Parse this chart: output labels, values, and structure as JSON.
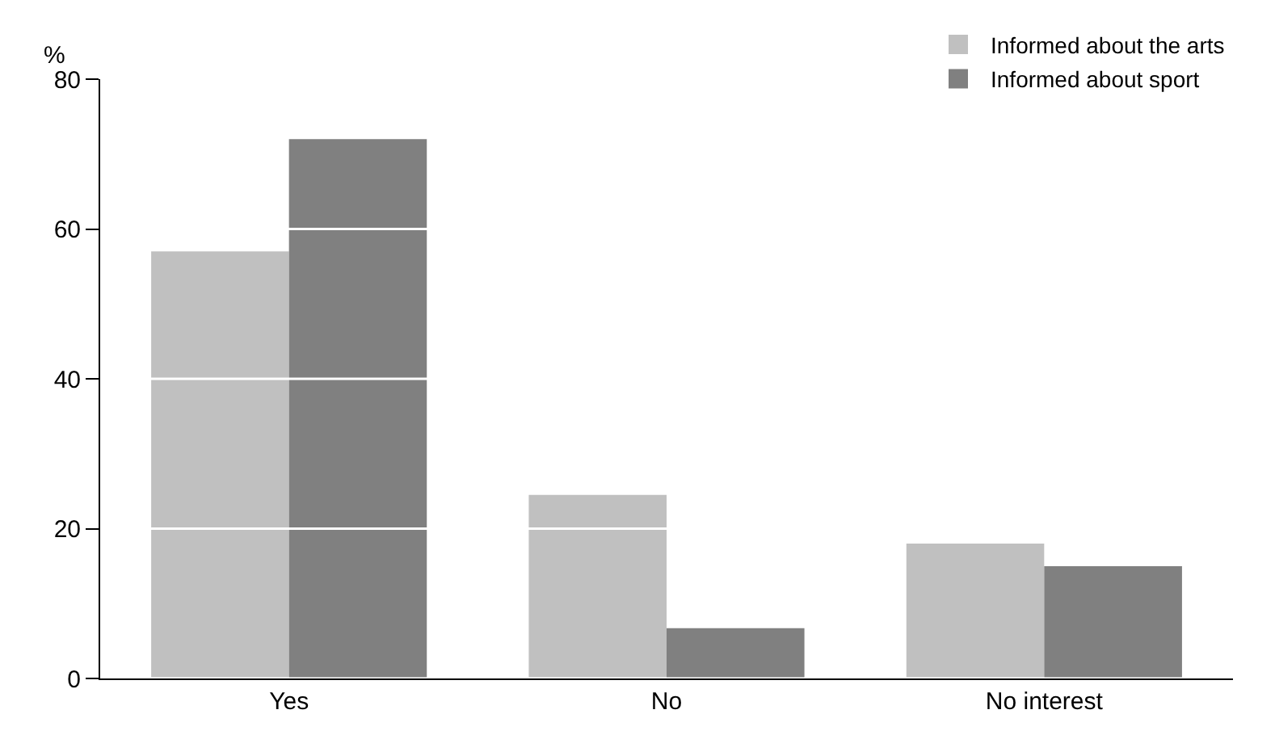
{
  "chart_data": {
    "type": "bar",
    "ylabel": "%",
    "categories": [
      "Yes",
      "No",
      "No interest"
    ],
    "series": [
      {
        "name": "Informed about the arts",
        "color": "#c0c0c0",
        "values": [
          57,
          24.5,
          18
        ]
      },
      {
        "name": "Informed about sport",
        "color": "#808080",
        "values": [
          72,
          6.7,
          15
        ]
      }
    ],
    "ylim": [
      0,
      80
    ],
    "yticks": [
      0,
      20,
      40,
      60,
      80
    ],
    "grid": "y",
    "legend": "top right"
  }
}
